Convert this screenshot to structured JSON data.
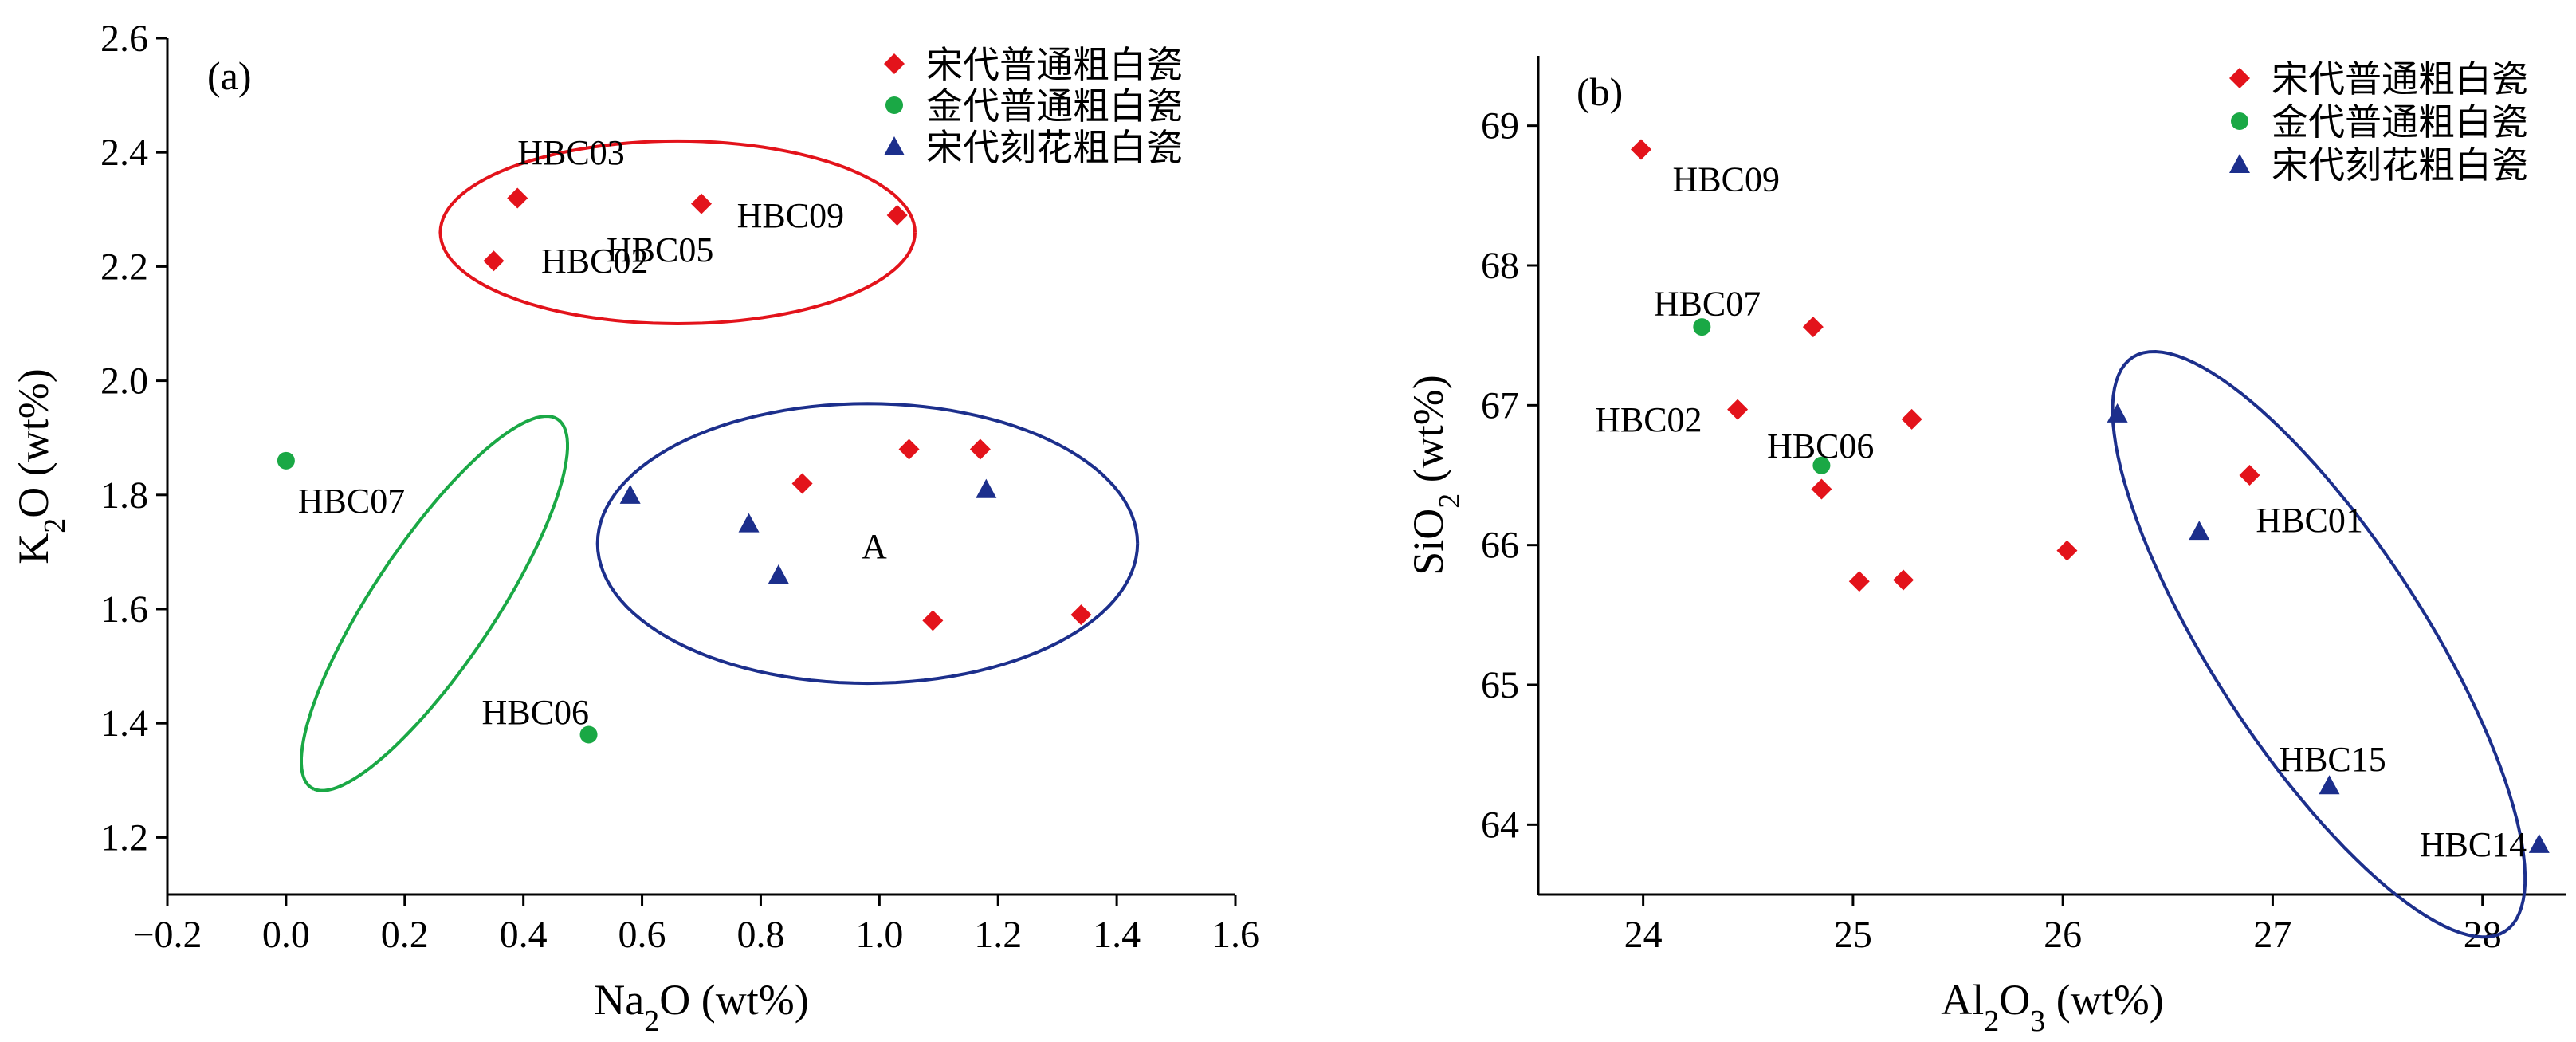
{
  "legend": [
    {
      "name": "宋代普通粗白瓷",
      "marker": "diamond",
      "color": "#e3131b"
    },
    {
      "name": "金代普通粗白瓷",
      "marker": "circle",
      "color": "#1aa845"
    },
    {
      "name": "宋代刻花粗白瓷",
      "marker": "triangle",
      "color": "#1c2f8c"
    }
  ],
  "colors": {
    "axis": "#000000",
    "red": "#e3131b",
    "green": "#1aa845",
    "navy": "#1c2f8c"
  },
  "chart_data": [
    {
      "type": "scatter",
      "panel": "(a)",
      "xlabel_base": "Na",
      "xlabel_sub": "2",
      "xlabel_rest": "O (wt%)",
      "ylabel_base": "K",
      "ylabel_sub": "2",
      "ylabel_rest": "O (wt%)",
      "xlim": [
        -0.2,
        1.6
      ],
      "ylim": [
        1.1,
        2.6
      ],
      "xticks": [
        -0.2,
        0.0,
        0.2,
        0.4,
        0.6,
        0.8,
        1.0,
        1.2,
        1.4,
        1.6
      ],
      "xtick_labels": [
        "−0.2",
        "0.0",
        "0.2",
        "0.4",
        "0.6",
        "0.8",
        "1.0",
        "1.2",
        "1.4",
        "1.6"
      ],
      "yticks": [
        1.2,
        1.4,
        1.6,
        1.8,
        2.0,
        2.2,
        2.4,
        2.6
      ],
      "ytick_labels": [
        "1.2",
        "1.4",
        "1.6",
        "1.8",
        "2.0",
        "2.2",
        "2.4",
        "2.6"
      ],
      "grid": false,
      "legend_position": "top-right",
      "series": [
        {
          "name": "宋代普通粗白瓷",
          "marker": "diamond",
          "color": "#e3131b",
          "points": [
            [
              0.39,
              2.32
            ],
            [
              0.7,
              2.31
            ],
            [
              0.35,
              2.21
            ],
            [
              1.03,
              2.29
            ],
            [
              0.87,
              1.82
            ],
            [
              1.05,
              1.88
            ],
            [
              1.17,
              1.88
            ],
            [
              1.09,
              1.58
            ],
            [
              1.34,
              1.59
            ]
          ]
        },
        {
          "name": "金代普通粗白瓷",
          "marker": "circle",
          "color": "#1aa845",
          "points": [
            [
              0.0,
              1.86
            ],
            [
              0.51,
              1.38
            ]
          ]
        },
        {
          "name": "宋代刻花粗白瓷",
          "marker": "triangle",
          "color": "#1c2f8c",
          "points": [
            [
              0.58,
              1.8
            ],
            [
              0.78,
              1.75
            ],
            [
              0.83,
              1.66
            ],
            [
              1.18,
              1.81
            ]
          ]
        }
      ],
      "annotations": [
        {
          "text": "HBC03",
          "x": 0.39,
          "y": 2.4
        },
        {
          "text": "HBC02",
          "x": 0.43,
          "y": 2.21
        },
        {
          "text": "HBC05",
          "x": 0.54,
          "y": 2.23
        },
        {
          "text": "HBC09",
          "x": 0.76,
          "y": 2.29
        },
        {
          "text": "HBC07",
          "x": 0.02,
          "y": 1.79
        },
        {
          "text": "HBC06",
          "x": 0.33,
          "y": 1.42
        },
        {
          "text": "A",
          "x": 0.97,
          "y": 1.71
        }
      ],
      "ellipses": [
        {
          "color": "#e3131b",
          "cx": 0.66,
          "cy": 2.26,
          "rx": 0.4,
          "ry": 0.16,
          "rot": 0
        },
        {
          "color": "#1aa845",
          "cx": 0.25,
          "cy": 1.61,
          "rx": 0.44,
          "ry": 0.09,
          "rot": -2.05
        },
        {
          "color": "#1c2f8c",
          "cx": 0.98,
          "cy": 1.715,
          "rx": 0.455,
          "ry": 0.245,
          "rot": 0
        }
      ]
    },
    {
      "type": "scatter",
      "panel": "(b)",
      "xlabel_base": "Al",
      "xlabel_sub": "2",
      "xlabel_rest": "O",
      "xlabel_sub2": "3",
      "xlabel_rest2": " (wt%)",
      "ylabel_base": "SiO",
      "ylabel_sub": "2",
      "ylabel_rest": " (wt%)",
      "xlim": [
        23.5,
        28.4
      ],
      "ylim": [
        63.5,
        69.5
      ],
      "xticks": [
        24,
        25,
        26,
        27,
        28
      ],
      "xtick_labels": [
        "24",
        "25",
        "26",
        "27",
        "28"
      ],
      "yticks": [
        64,
        65,
        66,
        67,
        68,
        69
      ],
      "ytick_labels": [
        "64",
        "65",
        "66",
        "67",
        "68",
        "69"
      ],
      "grid": false,
      "legend_position": "top-right",
      "series": [
        {
          "name": "宋代普通粗白瓷",
          "marker": "diamond",
          "color": "#e3131b",
          "points": [
            [
              23.99,
              68.83
            ],
            [
              24.81,
              67.56
            ],
            [
              24.45,
              66.97
            ],
            [
              25.28,
              66.9
            ],
            [
              24.85,
              66.4
            ],
            [
              25.03,
              65.74
            ],
            [
              25.24,
              65.75
            ],
            [
              26.02,
              65.96
            ],
            [
              26.89,
              66.5
            ]
          ]
        },
        {
          "name": "金代普通粗白瓷",
          "marker": "circle",
          "color": "#1aa845",
          "points": [
            [
              24.28,
              67.56
            ],
            [
              24.85,
              66.57
            ]
          ]
        },
        {
          "name": "宋代刻花粗白瓷",
          "marker": "triangle",
          "color": "#1c2f8c",
          "points": [
            [
              26.26,
              66.94
            ],
            [
              26.65,
              66.1
            ],
            [
              27.27,
              64.28
            ],
            [
              28.27,
              63.86
            ]
          ]
        }
      ],
      "annotations": [
        {
          "text": "HBC09",
          "x": 24.14,
          "y": 68.62
        },
        {
          "text": "HBC07",
          "x": 24.05,
          "y": 67.73
        },
        {
          "text": "HBC02",
          "x": 23.77,
          "y": 66.9
        },
        {
          "text": "HBC06",
          "x": 24.59,
          "y": 66.71
        },
        {
          "text": "HBC01",
          "x": 26.92,
          "y": 66.18
        },
        {
          "text": "HBC15",
          "x": 27.03,
          "y": 64.47
        },
        {
          "text": "HBC14",
          "x": 27.7,
          "y": 63.86
        }
      ],
      "ellipses": [
        {
          "color": "#1c2f8c",
          "cx": 27.22,
          "cy": 65.29,
          "rx": 1.9,
          "ry": 0.65,
          "rot": -1.1
        }
      ]
    }
  ]
}
